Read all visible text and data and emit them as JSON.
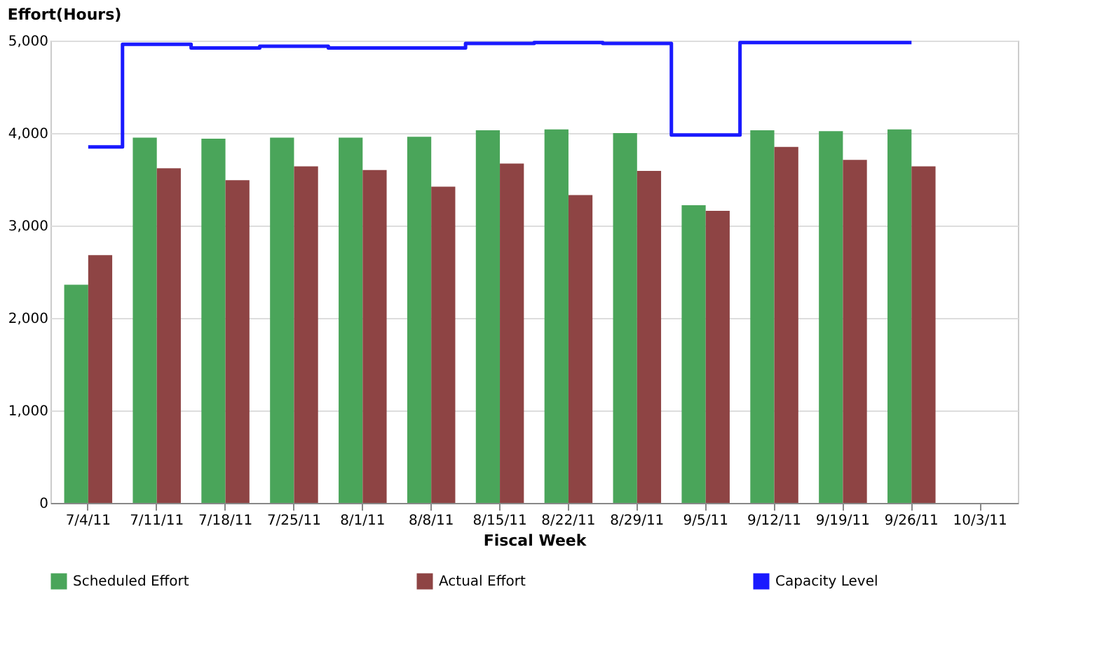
{
  "chart_data": {
    "type": "bar",
    "ylabel": "Effort(Hours)",
    "xlabel": "Fiscal Week",
    "categories": [
      "7/4/11",
      "7/11/11",
      "7/18/11",
      "7/25/11",
      "8/1/11",
      "8/8/11",
      "8/15/11",
      "8/22/11",
      "8/29/11",
      "9/5/11",
      "9/12/11",
      "9/19/11",
      "9/26/11",
      "10/3/11"
    ],
    "series": [
      {
        "name": "Scheduled Effort",
        "color": "#4aa55a",
        "values": [
          2360,
          3950,
          3940,
          3950,
          3950,
          3960,
          4030,
          4040,
          4000,
          3220,
          4030,
          4020,
          4040,
          null
        ]
      },
      {
        "name": "Actual Effort",
        "color": "#8e4444",
        "values": [
          2680,
          3620,
          3490,
          3640,
          3600,
          3420,
          3670,
          3330,
          3590,
          3160,
          3850,
          3710,
          3640,
          null
        ]
      },
      {
        "name": "Capacity Level",
        "type": "step",
        "color": "#1a1aff",
        "values": [
          3850,
          4960,
          4920,
          4940,
          4920,
          4920,
          4970,
          4980,
          4970,
          3980,
          4980,
          4980,
          4980,
          null
        ]
      }
    ],
    "ylim": [
      0,
      5000
    ],
    "yticks": [
      0,
      {
        "value": 1000,
        "label": "1,000"
      },
      {
        "value": 2000,
        "label": "2,000"
      },
      {
        "value": 3000,
        "label": "3,000"
      },
      {
        "value": 4000,
        "label": "4,000"
      },
      {
        "value": 5000,
        "label": "5,000"
      }
    ],
    "grid": "y",
    "legend": "bottom",
    "marker": "none"
  }
}
